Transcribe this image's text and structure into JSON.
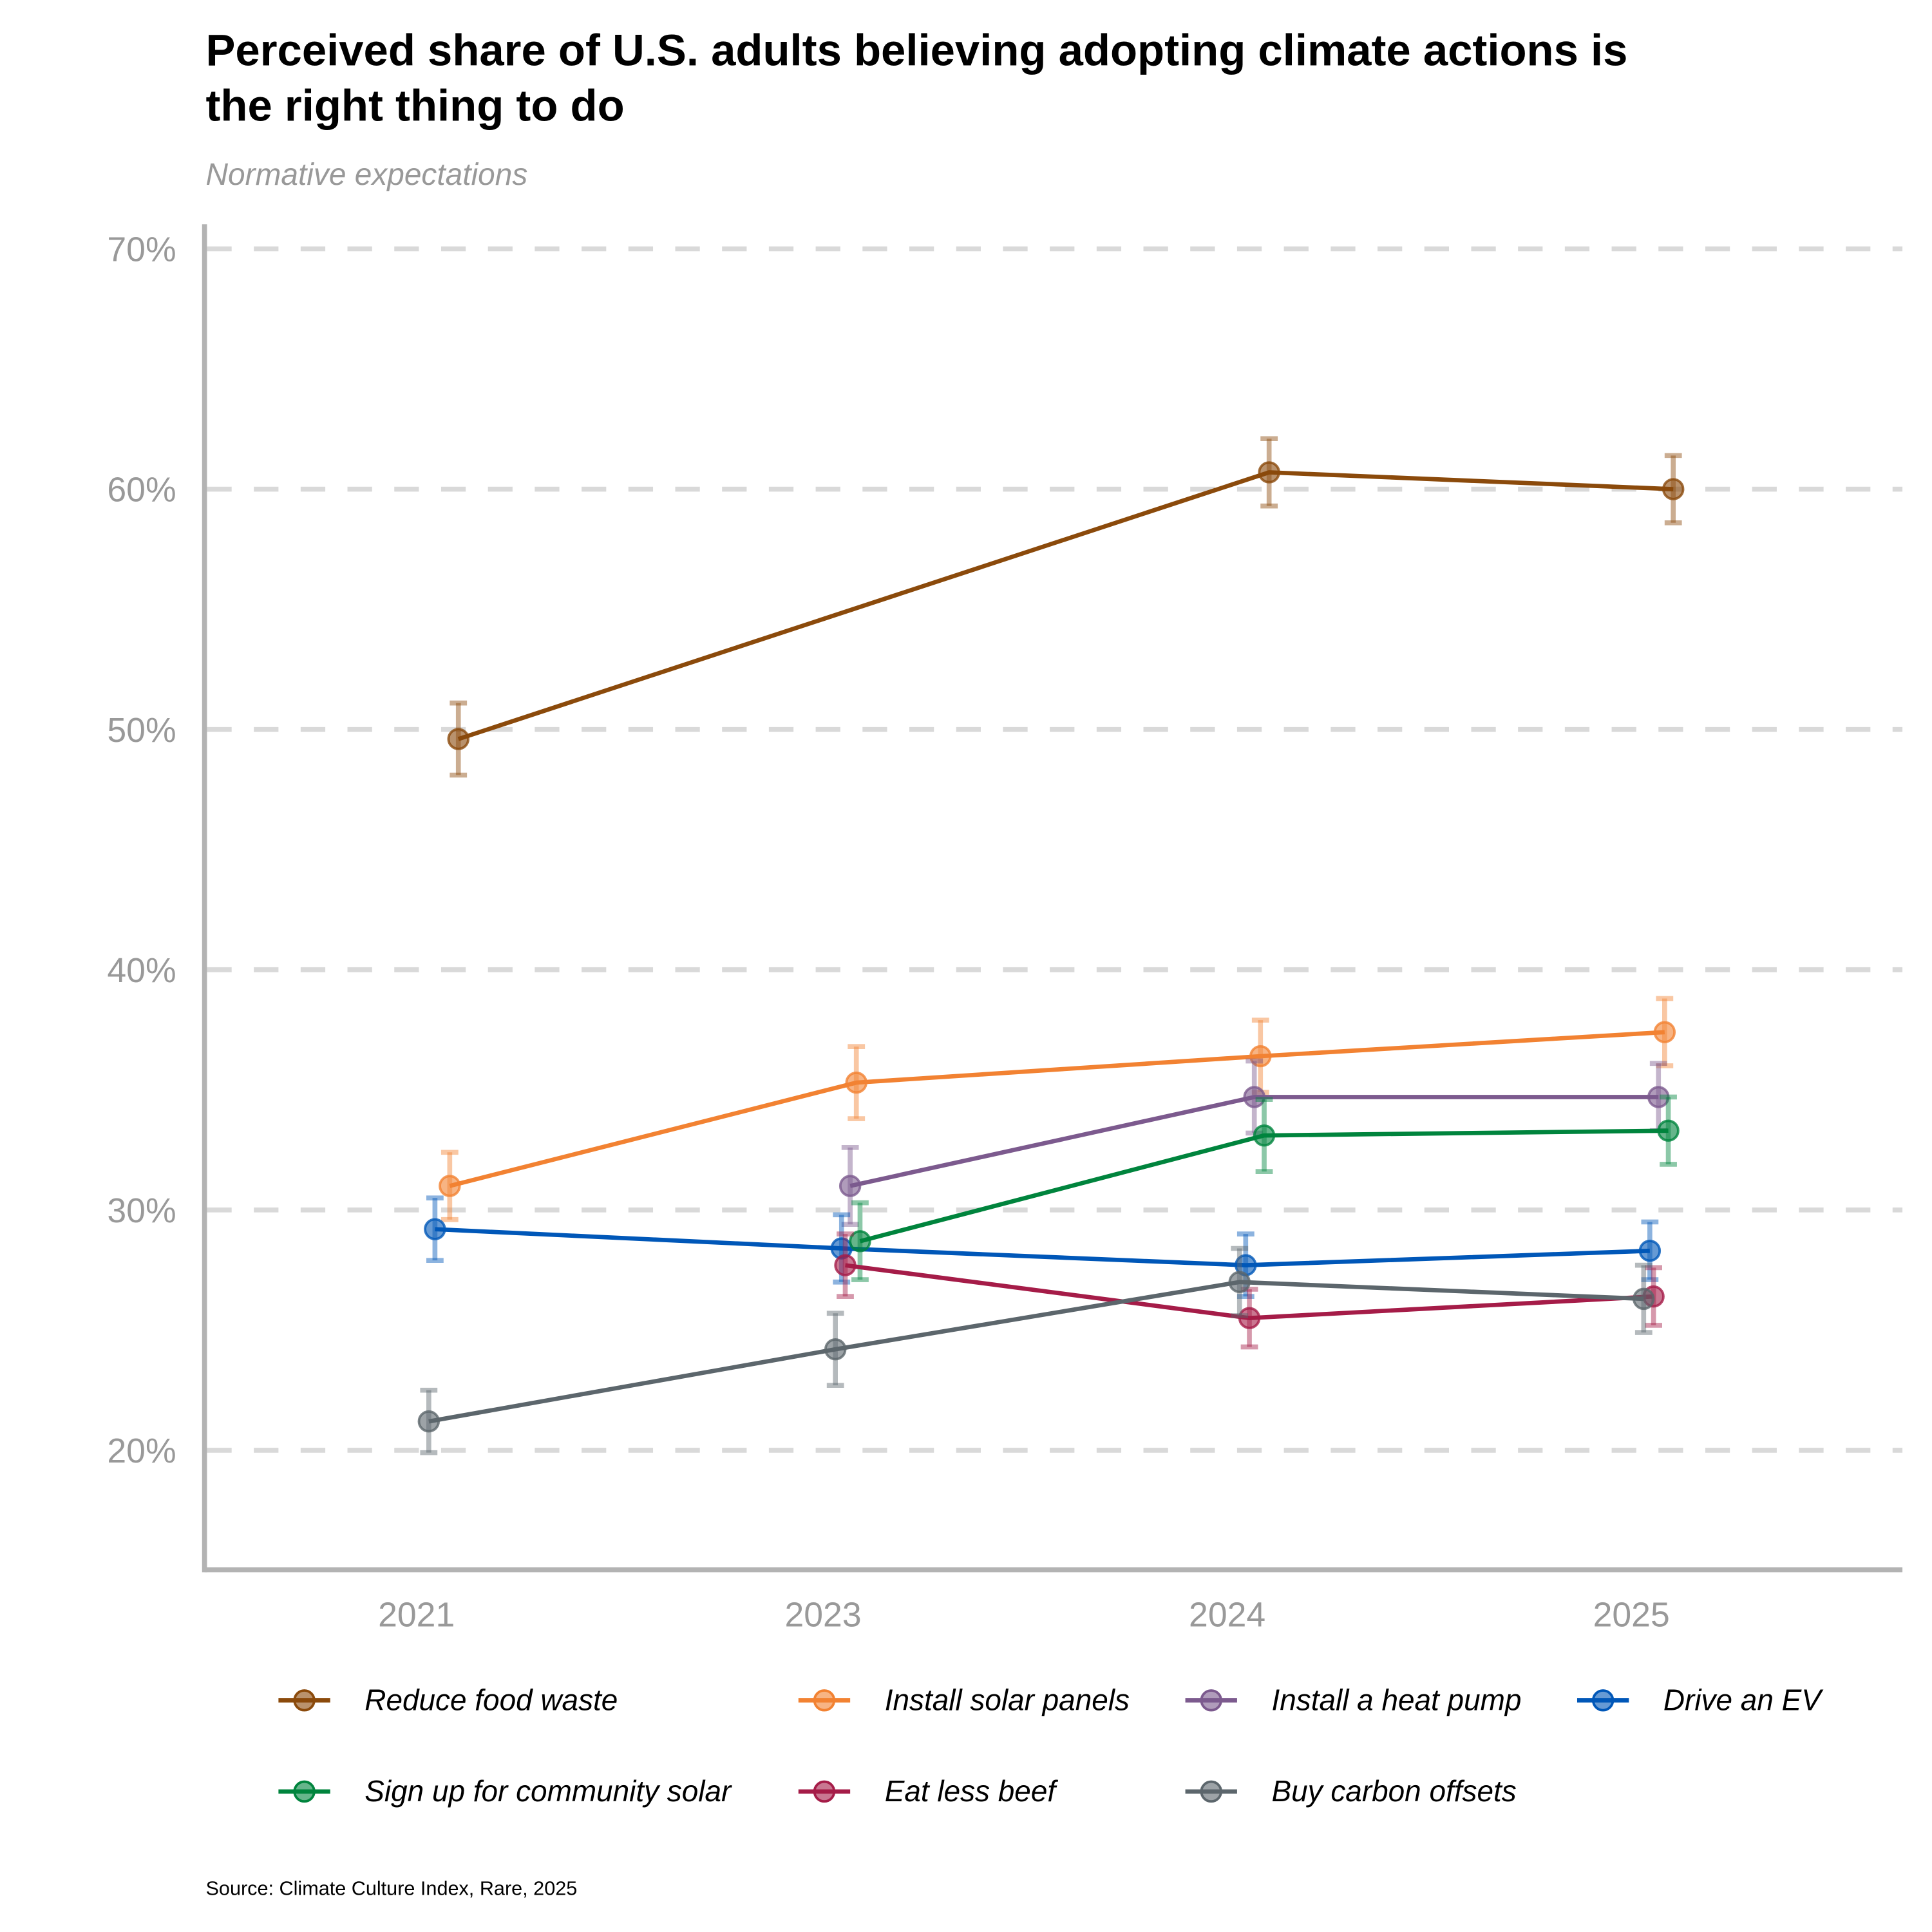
{
  "chart_data": {
    "type": "line",
    "title": "Perceived share of U.S. adults believing adopting climate actions is the right thing to do",
    "title_lines": [
      "Perceived share of U.S. adults believing adopting climate actions is",
      "the right thing to do"
    ],
    "subtitle": "Normative expectations",
    "source": "Source: Climate Culture Index, Rare, 2025",
    "xlabel": "",
    "ylabel": "",
    "categories": [
      "2021",
      "2023",
      "2024",
      "2025"
    ],
    "yticks": [
      20,
      30,
      40,
      50,
      60,
      70
    ],
    "ytick_labels": [
      "20%",
      "30%",
      "40%",
      "50%",
      "60%",
      "70%"
    ],
    "ylim": [
      15,
      71
    ],
    "grid": true,
    "legend_position": "bottom",
    "series": [
      {
        "name": "Reduce food waste",
        "color": "#8B4A0B",
        "values": [
          49.6,
          null,
          60.7,
          60.0
        ],
        "errors": [
          1.5,
          null,
          1.4,
          1.4
        ]
      },
      {
        "name": "Install solar panels",
        "color": "#F28232",
        "values": [
          31.0,
          35.3,
          36.4,
          37.4
        ],
        "errors": [
          1.4,
          1.5,
          1.5,
          1.4
        ]
      },
      {
        "name": "Install a heat pump",
        "color": "#7C5A8E",
        "values": [
          null,
          31.0,
          34.7,
          34.7
        ],
        "errors": [
          null,
          1.6,
          1.5,
          1.4
        ]
      },
      {
        "name": "Drive an EV",
        "color": "#0057B8",
        "values": [
          29.2,
          28.4,
          27.7,
          28.3
        ],
        "errors": [
          1.3,
          1.4,
          1.3,
          1.2
        ]
      },
      {
        "name": "Sign up for community solar",
        "color": "#00843D",
        "values": [
          null,
          28.7,
          33.1,
          33.3
        ],
        "errors": [
          null,
          1.6,
          1.5,
          1.4
        ]
      },
      {
        "name": "Eat less beef",
        "color": "#A51C48",
        "values": [
          null,
          27.7,
          25.5,
          26.4
        ],
        "errors": [
          null,
          1.3,
          1.2,
          1.2
        ]
      },
      {
        "name": "Buy carbon offsets",
        "color": "#5C666C",
        "values": [
          21.2,
          24.2,
          27.0,
          26.3
        ],
        "errors": [
          1.3,
          1.5,
          1.4,
          1.4
        ]
      }
    ]
  }
}
